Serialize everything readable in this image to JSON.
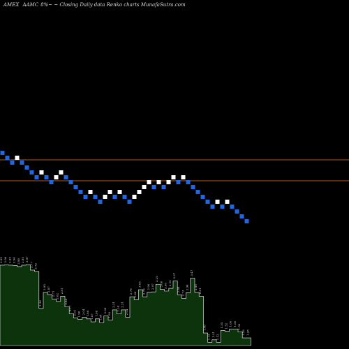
{
  "header": {
    "exchange": "AMEX",
    "symbol": "AAMC",
    "rest": "8%~ ~ Closing Daily data  Renko  charts MunafaSutra.com"
  },
  "colors": {
    "background": "#000000",
    "up_brick": "#ffffff",
    "down_brick": "#1f66e5",
    "level_line": "#b35a1f",
    "volume_fill": "#0d330d",
    "volume_stroke": "#ffffff",
    "volume_label": "#dddddd"
  },
  "chart_data": [
    {
      "type": "renko",
      "directions": [
        "down",
        "down",
        "down",
        "up",
        "down",
        "down",
        "down",
        "down",
        "up",
        "down",
        "down",
        "up",
        "up",
        "down",
        "down",
        "down",
        "down",
        "down",
        "up",
        "down",
        "down",
        "up",
        "up",
        "down",
        "up",
        "down",
        "down",
        "up",
        "up",
        "up",
        "up",
        "down",
        "up",
        "down",
        "up",
        "up",
        "down",
        "up",
        "down",
        "down",
        "down",
        "down",
        "down",
        "down",
        "up",
        "down",
        "up",
        "down",
        "down",
        "down",
        "down"
      ],
      "levels": [
        "top",
        "bottom"
      ]
    },
    {
      "type": "area",
      "labels": [
        "3.95",
        "3.96",
        "3.95",
        "3.94",
        "3.90",
        "3.95",
        "3.97",
        "3.77",
        "3.72",
        "2.36",
        "2.95",
        "2.87",
        "2.71",
        "2.62",
        "2.81",
        "2.42",
        "2.17",
        "2.01",
        "1.96",
        "2.04",
        "1.98",
        "1.87",
        "1.98",
        "1.84",
        "2.09",
        "1.93",
        "2.31",
        "2.16",
        "2.31",
        "2.04",
        "2.79",
        "2.68",
        "3.05",
        "2.79",
        "2.96",
        "2.97",
        "3.25",
        "3.06",
        "3.00",
        "3.10",
        "3.37",
        "2.86",
        "2.73",
        "2.94",
        "3.47",
        "2.95",
        "2.81",
        "1.46",
        "1.12",
        "1.21",
        "1.12",
        "1.55",
        "1.52",
        "1.60",
        "1.60",
        "1.50",
        "1.28",
        "1.28"
      ],
      "values": [
        3.95,
        3.96,
        3.95,
        3.94,
        3.9,
        3.95,
        3.97,
        3.77,
        3.72,
        2.36,
        2.95,
        2.87,
        2.71,
        2.62,
        2.81,
        2.42,
        2.17,
        2.01,
        1.96,
        2.04,
        1.98,
        1.87,
        1.98,
        1.84,
        2.09,
        1.93,
        2.31,
        2.16,
        2.31,
        2.04,
        2.79,
        2.68,
        3.05,
        2.79,
        2.96,
        2.97,
        3.25,
        3.06,
        3.0,
        3.1,
        3.37,
        2.86,
        2.73,
        2.94,
        3.47,
        2.95,
        2.81,
        1.46,
        1.12,
        1.21,
        1.12,
        1.55,
        1.52,
        1.6,
        1.6,
        1.5,
        1.28,
        1.28
      ]
    }
  ]
}
